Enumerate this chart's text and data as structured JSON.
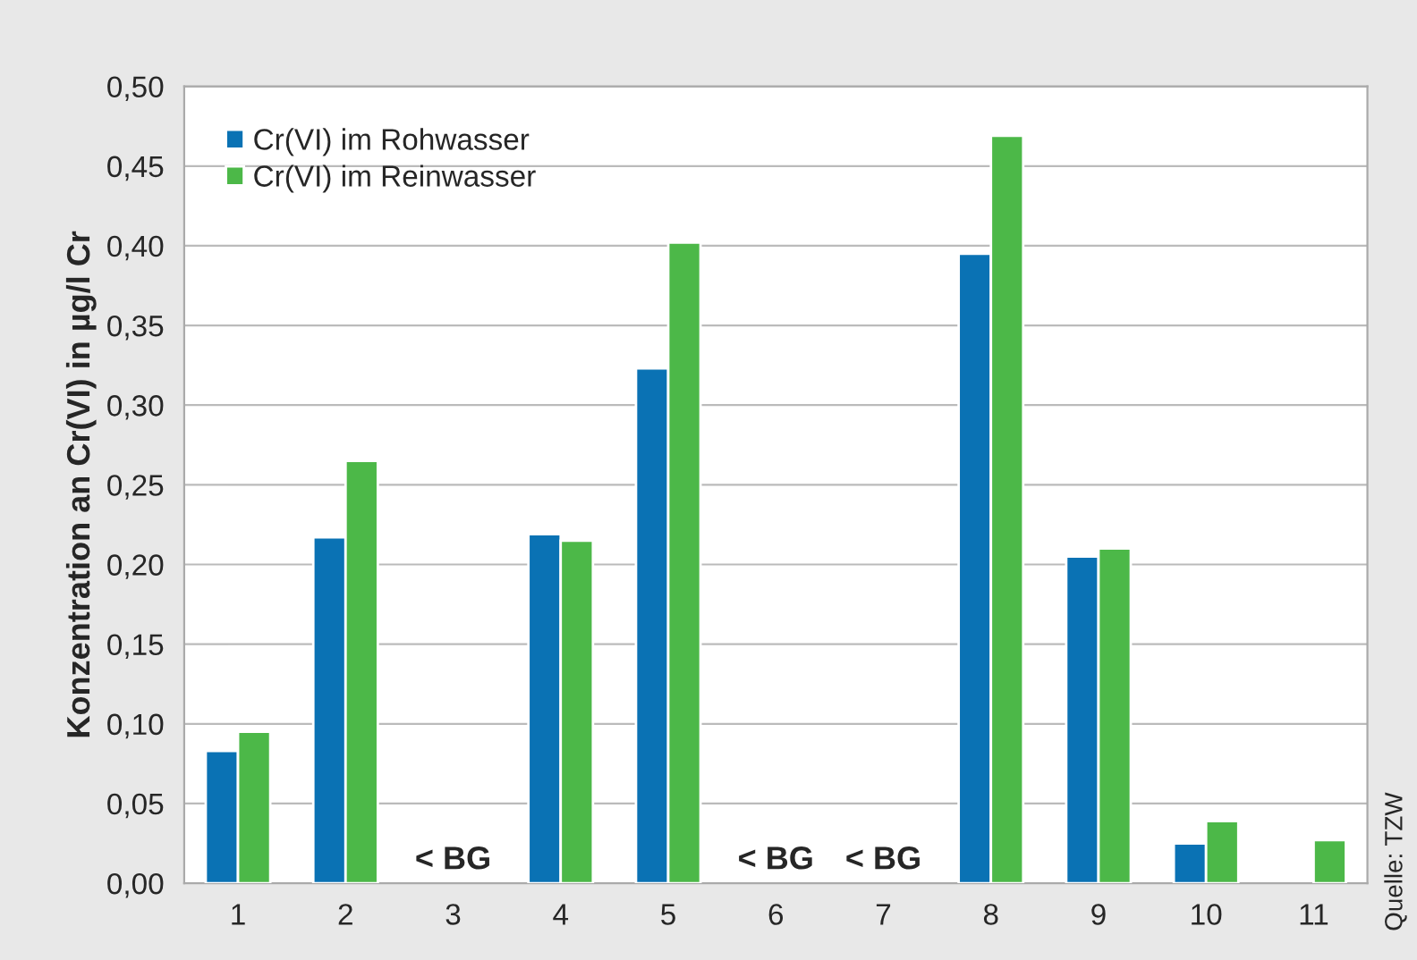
{
  "chart_data": {
    "type": "bar",
    "ylabel": "Konzentration an Cr(VI) in µg/l Cr",
    "categories": [
      "1",
      "2",
      "3",
      "4",
      "5",
      "6",
      "7",
      "8",
      "9",
      "10",
      "11"
    ],
    "series": [
      {
        "name": "Cr(VI) im Rohwasser",
        "color": "#0a72b4",
        "values": [
          0.083,
          0.217,
          null,
          0.219,
          0.323,
          null,
          null,
          0.395,
          0.205,
          0.025,
          null
        ]
      },
      {
        "name": "Cr(VI) im Reinwasser",
        "color": "#4cb848",
        "values": [
          0.095,
          0.265,
          null,
          0.215,
          0.402,
          null,
          null,
          0.469,
          0.21,
          0.039,
          0.027
        ]
      }
    ],
    "ylim": [
      0,
      0.5
    ],
    "yticks": [
      {
        "value": 0,
        "label": "0,00"
      },
      {
        "value": 0.05,
        "label": "0,05"
      },
      {
        "value": 0.1,
        "label": "0,10"
      },
      {
        "value": 0.15,
        "label": "0,15"
      },
      {
        "value": 0.2,
        "label": "0,20"
      },
      {
        "value": 0.25,
        "label": "0,25"
      },
      {
        "value": 0.3,
        "label": "0,30"
      },
      {
        "value": 0.35,
        "label": "0,35"
      },
      {
        "value": 0.4,
        "label": "0,40"
      },
      {
        "value": 0.45,
        "label": "0,45"
      },
      {
        "value": 0.5,
        "label": "0,50"
      }
    ],
    "grid": "y",
    "legend": "top left",
    "annotations": [
      "< BG",
      "< BG",
      "< BG",
      "Quelle: TZW"
    ]
  }
}
